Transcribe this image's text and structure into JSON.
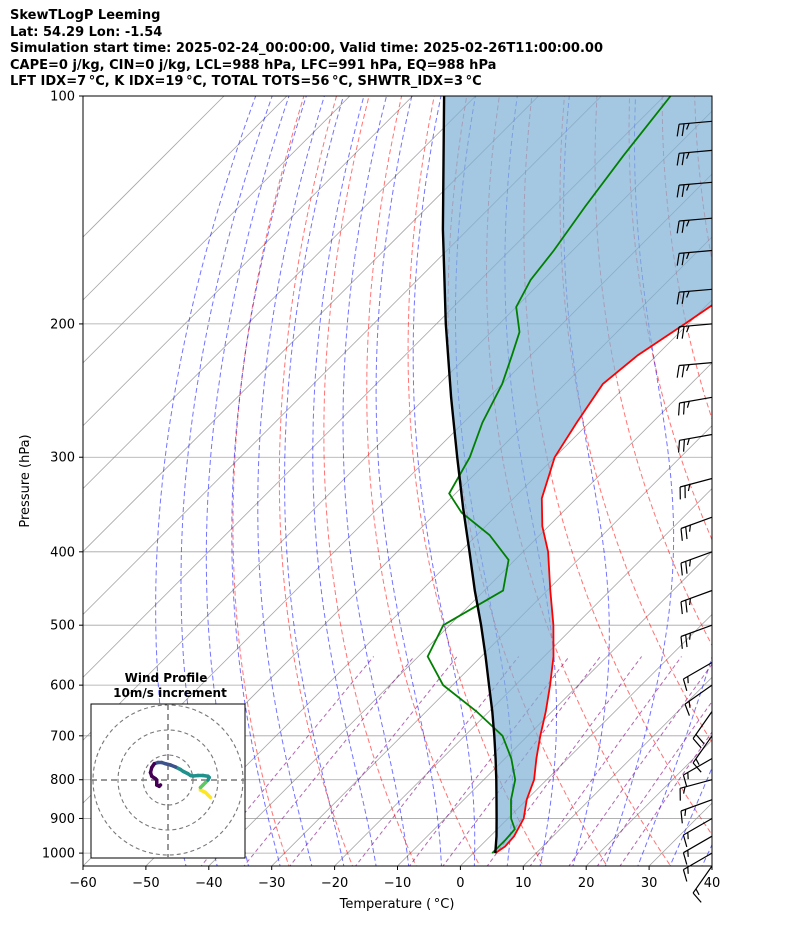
{
  "header": {
    "line1": "SkewTLogP Leeming",
    "line2": "Lat: 54.29   Lon: -1.54",
    "line3": "Simulation start time: 2025-02-24_00:00:00, Valid time: 2025-02-26T11:00:00.00",
    "line4": "CAPE=0 j/kg, CIN=0 j/kg, LCL=988 hPa, LFC=991 hPa, EQ=988 hPa",
    "line5": "LFT IDX=7 °C, K IDX=19 °C, TOTAL TOTS=56 °C, SHWTR_IDX=3 °C"
  },
  "colors": {
    "temperature": "#ff0000",
    "dewpoint": "#008000",
    "parcel": "#000000",
    "cape_fill": "#7fb0d6",
    "dry_adiabat": "#ff0000",
    "moist_adiabat": "#0000ff",
    "mixing_ratio": "#800080",
    "isotherm": "#808080"
  },
  "chart_data": {
    "type": "skew-t log-p",
    "xlabel": "Temperature ( °C)",
    "ylabel": "Pressure (hPa)",
    "xlim": [
      -60,
      40
    ],
    "ylim": [
      1040,
      100
    ],
    "x_ticks": [
      "−60",
      "−50",
      "−40",
      "−30",
      "−20",
      "−10",
      "0",
      "10",
      "20",
      "30",
      "40"
    ],
    "y_ticks": [
      "100",
      "200",
      "300",
      "400",
      "500",
      "600",
      "700",
      "800",
      "900",
      "1000"
    ],
    "y_scale": "log",
    "grid": true,
    "temperature_profile": [
      {
        "p": 1000,
        "t": 3.5
      },
      {
        "p": 980,
        "t": 4.0
      },
      {
        "p": 950,
        "t": 3.8
      },
      {
        "p": 900,
        "t": 2.5
      },
      {
        "p": 850,
        "t": 0.0
      },
      {
        "p": 800,
        "t": -2.0
      },
      {
        "p": 750,
        "t": -5.0
      },
      {
        "p": 700,
        "t": -8.0
      },
      {
        "p": 650,
        "t": -11.0
      },
      {
        "p": 600,
        "t": -14.5
      },
      {
        "p": 550,
        "t": -18.5
      },
      {
        "p": 500,
        "t": -23.5
      },
      {
        "p": 450,
        "t": -29.5
      },
      {
        "p": 400,
        "t": -36.0
      },
      {
        "p": 370,
        "t": -41.0
      },
      {
        "p": 340,
        "t": -45.5
      },
      {
        "p": 300,
        "t": -50.0
      },
      {
        "p": 270,
        "t": -52.0
      },
      {
        "p": 240,
        "t": -54.0
      },
      {
        "p": 220,
        "t": -53.0
      },
      {
        "p": 200,
        "t": -50.5
      },
      {
        "p": 180,
        "t": -48.0
      },
      {
        "p": 160,
        "t": -47.0
      },
      {
        "p": 140,
        "t": -47.0
      },
      {
        "p": 120,
        "t": -48.0
      },
      {
        "p": 110,
        "t": -48.5
      },
      {
        "p": 100,
        "t": -49.0
      }
    ],
    "dewpoint_profile": [
      {
        "p": 1000,
        "td": 3.0
      },
      {
        "p": 960,
        "td": 3.0
      },
      {
        "p": 930,
        "td": 2.8
      },
      {
        "p": 900,
        "td": 0.5
      },
      {
        "p": 850,
        "td": -2.5
      },
      {
        "p": 800,
        "td": -5.0
      },
      {
        "p": 750,
        "td": -9.0
      },
      {
        "p": 700,
        "td": -14.0
      },
      {
        "p": 650,
        "td": -22.0
      },
      {
        "p": 600,
        "td": -31.5
      },
      {
        "p": 550,
        "td": -38.5
      },
      {
        "p": 500,
        "td": -41.0
      },
      {
        "p": 450,
        "td": -37.0
      },
      {
        "p": 410,
        "td": -41.0
      },
      {
        "p": 380,
        "td": -48.0
      },
      {
        "p": 355,
        "td": -56.0
      },
      {
        "p": 335,
        "td": -61.0
      },
      {
        "p": 300,
        "td": -63.5
      },
      {
        "p": 270,
        "td": -67.0
      },
      {
        "p": 240,
        "td": -70.0
      },
      {
        "p": 220,
        "td": -73.0
      },
      {
        "p": 205,
        "td": -75.5
      },
      {
        "p": 190,
        "td": -80.0
      },
      {
        "p": 175,
        "td": -82.0
      },
      {
        "p": 160,
        "td": -83.0
      },
      {
        "p": 140,
        "td": -85.0
      },
      {
        "p": 120,
        "td": -87.0
      },
      {
        "p": 100,
        "td": -89.0
      }
    ],
    "parcel_profile": [
      {
        "p": 1000,
        "t": 3.5
      },
      {
        "p": 950,
        "t": 1.0
      },
      {
        "p": 900,
        "t": -1.8
      },
      {
        "p": 850,
        "t": -4.8
      },
      {
        "p": 800,
        "t": -8.0
      },
      {
        "p": 750,
        "t": -11.5
      },
      {
        "p": 700,
        "t": -15.3
      },
      {
        "p": 650,
        "t": -19.5
      },
      {
        "p": 600,
        "t": -24.2
      },
      {
        "p": 550,
        "t": -29.3
      },
      {
        "p": 500,
        "t": -35.0
      },
      {
        "p": 450,
        "t": -41.5
      },
      {
        "p": 400,
        "t": -48.5
      },
      {
        "p": 350,
        "t": -56.5
      },
      {
        "p": 300,
        "t": -65.5
      },
      {
        "p": 250,
        "t": -76.0
      },
      {
        "p": 200,
        "t": -88.5
      },
      {
        "p": 150,
        "t": -104.0
      },
      {
        "p": 100,
        "t": -125.0
      }
    ],
    "wind_barbs": [
      {
        "p": 1040,
        "dir": 215,
        "kt": 15
      },
      {
        "p": 1000,
        "dir": 240,
        "kt": 15
      },
      {
        "p": 950,
        "dir": 240,
        "kt": 15
      },
      {
        "p": 900,
        "dir": 240,
        "kt": 15
      },
      {
        "p": 850,
        "dir": 250,
        "kt": 15
      },
      {
        "p": 800,
        "dir": 255,
        "kt": 15
      },
      {
        "p": 750,
        "dir": 240,
        "kt": 15
      },
      {
        "p": 700,
        "dir": 215,
        "kt": 15
      },
      {
        "p": 650,
        "dir": 215,
        "kt": 20
      },
      {
        "p": 600,
        "dir": 235,
        "kt": 15
      },
      {
        "p": 560,
        "dir": 240,
        "kt": 15
      },
      {
        "p": 500,
        "dir": 250,
        "kt": 25
      },
      {
        "p": 450,
        "dir": 250,
        "kt": 25
      },
      {
        "p": 400,
        "dir": 250,
        "kt": 25
      },
      {
        "p": 360,
        "dir": 250,
        "kt": 25
      },
      {
        "p": 320,
        "dir": 255,
        "kt": 25
      },
      {
        "p": 280,
        "dir": 260,
        "kt": 25
      },
      {
        "p": 250,
        "dir": 260,
        "kt": 25
      },
      {
        "p": 225,
        "dir": 265,
        "kt": 25
      },
      {
        "p": 200,
        "dir": 265,
        "kt": 25
      },
      {
        "p": 180,
        "dir": 265,
        "kt": 25
      },
      {
        "p": 160,
        "dir": 265,
        "kt": 25
      },
      {
        "p": 145,
        "dir": 265,
        "kt": 25
      },
      {
        "p": 130,
        "dir": 265,
        "kt": 25
      },
      {
        "p": 118,
        "dir": 265,
        "kt": 25
      },
      {
        "p": 108,
        "dir": 265,
        "kt": 25
      }
    ],
    "hodograph": {
      "title": "Wind Profile",
      "subtitle": "10m/s increment",
      "ring_step_ms": 10,
      "rings": 3,
      "track_uv": [
        [
          17,
          -7
        ],
        [
          16,
          -6
        ],
        [
          15,
          -5
        ],
        [
          14,
          -4.5
        ],
        [
          13,
          -4
        ],
        [
          13,
          -3
        ],
        [
          14,
          -2
        ],
        [
          15,
          -1
        ],
        [
          16,
          0
        ],
        [
          16.5,
          1
        ],
        [
          16,
          1.5
        ],
        [
          14,
          1.8
        ],
        [
          12,
          1.8
        ],
        [
          10,
          1.6
        ],
        [
          9,
          1.8
        ],
        [
          8,
          2.5
        ],
        [
          6,
          3.5
        ],
        [
          5,
          4.2
        ],
        [
          3,
          5.2
        ],
        [
          1,
          6
        ],
        [
          -1,
          6.5
        ],
        [
          -2.5,
          7
        ],
        [
          -4,
          7
        ],
        [
          -5.5,
          6.5
        ],
        [
          -6.5,
          5
        ],
        [
          -7,
          3
        ],
        [
          -6.5,
          1.5
        ],
        [
          -5,
          0.5
        ],
        [
          -4.5,
          0
        ],
        [
          -4.5,
          -1
        ],
        [
          -4.5,
          -2
        ],
        [
          -3.5,
          -2.5
        ],
        [
          -3,
          -2
        ]
      ]
    }
  }
}
